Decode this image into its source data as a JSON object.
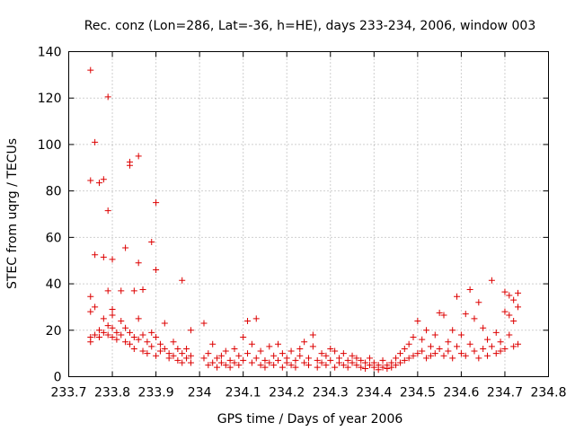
{
  "chart_data": {
    "type": "scatter",
    "title": "Rec. conz (Lon=286, Lat=-36, h=HE), days 233-234, 2006, window 003",
    "xlabel": "GPS time / Days of year 2006",
    "ylabel": "STEC from uqrg / TECUs",
    "xlim": [
      233.7,
      234.8
    ],
    "ylim": [
      0,
      140
    ],
    "xticks": [
      "233.7",
      "233.8",
      "233.9",
      "234",
      "234.1",
      "234.2",
      "234.3",
      "234.4",
      "234.5",
      "234.6",
      "234.7",
      "234.8"
    ],
    "yticks": [
      "0",
      "20",
      "40",
      "60",
      "80",
      "100",
      "120",
      "140"
    ],
    "grid": true,
    "marker": "+",
    "color": "#dd0000",
    "series": [
      {
        "points": [
          [
            233.75,
            132
          ],
          [
            233.75,
            84.5
          ],
          [
            233.77,
            83.5
          ],
          [
            233.78,
            85
          ],
          [
            233.76,
            101
          ],
          [
            233.79,
            120.5
          ],
          [
            233.79,
            71.5
          ],
          [
            233.76,
            52.5
          ],
          [
            233.78,
            51.5
          ],
          [
            233.8,
            50.5
          ],
          [
            233.75,
            34.5
          ],
          [
            233.76,
            30
          ],
          [
            233.75,
            28
          ],
          [
            233.79,
            37
          ],
          [
            233.8,
            29
          ],
          [
            233.8,
            26.5
          ],
          [
            233.82,
            37
          ],
          [
            233.83,
            55.5
          ],
          [
            233.84,
            92.5
          ],
          [
            233.84,
            91
          ],
          [
            233.86,
            95
          ],
          [
            233.85,
            37
          ],
          [
            233.86,
            49
          ],
          [
            233.87,
            37.5
          ],
          [
            233.89,
            58
          ],
          [
            233.9,
            75
          ],
          [
            233.9,
            46
          ],
          [
            233.96,
            41.5
          ],
          [
            233.75,
            17
          ],
          [
            233.75,
            15
          ],
          [
            233.76,
            18
          ],
          [
            233.77,
            17
          ],
          [
            233.77,
            20
          ],
          [
            233.78,
            25
          ],
          [
            233.78,
            19
          ],
          [
            233.79,
            22
          ],
          [
            233.79,
            18
          ],
          [
            233.8,
            17
          ],
          [
            233.8,
            21
          ],
          [
            233.81,
            19
          ],
          [
            233.81,
            16
          ],
          [
            233.82,
            24
          ],
          [
            233.82,
            18
          ],
          [
            233.83,
            21
          ],
          [
            233.83,
            15
          ],
          [
            233.84,
            19
          ],
          [
            233.84,
            14
          ],
          [
            233.85,
            17
          ],
          [
            233.85,
            12
          ],
          [
            233.86,
            25
          ],
          [
            233.86,
            16
          ],
          [
            233.87,
            18
          ],
          [
            233.87,
            11
          ],
          [
            233.88,
            15
          ],
          [
            233.88,
            10
          ],
          [
            233.89,
            19
          ],
          [
            233.89,
            13
          ],
          [
            233.9,
            17
          ],
          [
            233.9,
            9
          ],
          [
            233.91,
            14
          ],
          [
            233.91,
            11
          ],
          [
            233.92,
            23
          ],
          [
            233.92,
            12
          ],
          [
            233.93,
            10
          ],
          [
            233.93,
            8
          ],
          [
            233.94,
            15
          ],
          [
            233.94,
            9
          ],
          [
            233.95,
            12
          ],
          [
            233.95,
            7
          ],
          [
            233.96,
            10
          ],
          [
            233.96,
            6
          ],
          [
            233.97,
            8
          ],
          [
            233.97,
            12
          ],
          [
            233.98,
            6
          ],
          [
            233.98,
            20
          ],
          [
            233.98,
            9
          ],
          [
            234.01,
            23
          ],
          [
            234.01,
            8
          ],
          [
            234.02,
            5
          ],
          [
            234.02,
            10
          ],
          [
            234.03,
            14
          ],
          [
            234.03,
            6
          ],
          [
            234.04,
            8
          ],
          [
            234.04,
            4
          ],
          [
            234.05,
            9
          ],
          [
            234.05,
            6
          ],
          [
            234.06,
            11
          ],
          [
            234.06,
            5
          ],
          [
            234.07,
            7
          ],
          [
            234.07,
            4
          ],
          [
            234.08,
            12
          ],
          [
            234.08,
            6
          ],
          [
            234.09,
            9
          ],
          [
            234.09,
            5
          ],
          [
            234.1,
            17
          ],
          [
            234.1,
            7
          ],
          [
            234.11,
            24
          ],
          [
            234.11,
            10
          ],
          [
            234.12,
            6
          ],
          [
            234.12,
            14
          ],
          [
            234.13,
            25
          ],
          [
            234.13,
            8
          ],
          [
            234.14,
            5
          ],
          [
            234.14,
            11
          ],
          [
            234.15,
            7
          ],
          [
            234.15,
            4
          ],
          [
            234.16,
            13
          ],
          [
            234.16,
            6
          ],
          [
            234.17,
            9
          ],
          [
            234.17,
            5
          ],
          [
            234.18,
            14
          ],
          [
            234.18,
            7
          ],
          [
            234.19,
            4
          ],
          [
            234.19,
            10
          ],
          [
            234.2,
            6
          ],
          [
            234.2,
            8
          ],
          [
            234.21,
            11
          ],
          [
            234.21,
            5
          ],
          [
            234.22,
            7
          ],
          [
            234.22,
            4
          ],
          [
            234.23,
            9
          ],
          [
            234.23,
            12
          ],
          [
            234.24,
            6
          ],
          [
            234.24,
            15
          ],
          [
            234.25,
            8
          ],
          [
            234.25,
            5
          ],
          [
            234.26,
            13
          ],
          [
            234.26,
            18
          ],
          [
            234.27,
            7
          ],
          [
            234.27,
            4
          ],
          [
            234.28,
            10
          ],
          [
            234.28,
            6
          ],
          [
            234.29,
            9
          ],
          [
            234.29,
            5
          ],
          [
            234.3,
            12
          ],
          [
            234.3,
            7
          ],
          [
            234.31,
            4
          ],
          [
            234.31,
            11
          ],
          [
            234.32,
            6
          ],
          [
            234.32,
            8
          ],
          [
            234.33,
            10
          ],
          [
            234.33,
            5
          ],
          [
            234.34,
            7
          ],
          [
            234.34,
            4
          ],
          [
            234.35,
            9
          ],
          [
            234.35,
            6
          ],
          [
            234.36,
            8
          ],
          [
            234.36,
            5
          ],
          [
            234.37,
            7
          ],
          [
            234.37,
            4
          ],
          [
            234.38,
            6
          ],
          [
            234.38,
            3.5
          ],
          [
            234.39,
            5
          ],
          [
            234.39,
            8
          ],
          [
            234.4,
            4
          ],
          [
            234.4,
            6
          ],
          [
            234.41,
            3
          ],
          [
            234.41,
            5
          ],
          [
            234.42,
            4
          ],
          [
            234.42,
            7
          ],
          [
            234.43,
            3.5
          ],
          [
            234.43,
            5
          ],
          [
            234.44,
            6
          ],
          [
            234.44,
            4
          ],
          [
            234.45,
            8
          ],
          [
            234.45,
            5
          ],
          [
            234.46,
            10
          ],
          [
            234.46,
            6
          ],
          [
            234.47,
            12
          ],
          [
            234.47,
            7
          ],
          [
            234.48,
            14
          ],
          [
            234.48,
            8
          ],
          [
            234.49,
            17
          ],
          [
            234.49,
            9
          ],
          [
            234.5,
            24
          ],
          [
            234.5,
            10
          ],
          [
            234.51,
            16
          ],
          [
            234.51,
            11
          ],
          [
            234.52,
            20
          ],
          [
            234.52,
            8
          ],
          [
            234.53,
            13
          ],
          [
            234.53,
            9
          ],
          [
            234.54,
            18
          ],
          [
            234.54,
            10
          ],
          [
            234.55,
            27.5
          ],
          [
            234.55,
            12
          ],
          [
            234.56,
            26.5
          ],
          [
            234.56,
            9
          ],
          [
            234.57,
            15
          ],
          [
            234.57,
            11
          ],
          [
            234.58,
            20
          ],
          [
            234.58,
            8
          ],
          [
            234.59,
            34.5
          ],
          [
            234.59,
            13
          ],
          [
            234.6,
            18
          ],
          [
            234.6,
            10
          ],
          [
            234.61,
            27
          ],
          [
            234.61,
            9
          ],
          [
            234.62,
            37.5
          ],
          [
            234.62,
            14
          ],
          [
            234.63,
            25
          ],
          [
            234.63,
            11
          ],
          [
            234.64,
            32
          ],
          [
            234.64,
            8
          ],
          [
            234.65,
            21
          ],
          [
            234.65,
            12
          ],
          [
            234.66,
            16
          ],
          [
            234.66,
            9
          ],
          [
            234.67,
            41.5
          ],
          [
            234.67,
            13
          ],
          [
            234.68,
            19
          ],
          [
            234.68,
            10
          ],
          [
            234.69,
            15
          ],
          [
            234.69,
            11
          ],
          [
            234.7,
            36.5
          ],
          [
            234.7,
            12
          ],
          [
            234.71,
            35
          ],
          [
            234.71,
            18
          ],
          [
            234.72,
            24
          ],
          [
            234.72,
            13
          ],
          [
            234.73,
            36
          ],
          [
            234.73,
            30
          ],
          [
            234.73,
            14
          ],
          [
            234.71,
            26.5
          ],
          [
            234.72,
            33
          ],
          [
            234.7,
            28
          ]
        ]
      }
    ]
  }
}
